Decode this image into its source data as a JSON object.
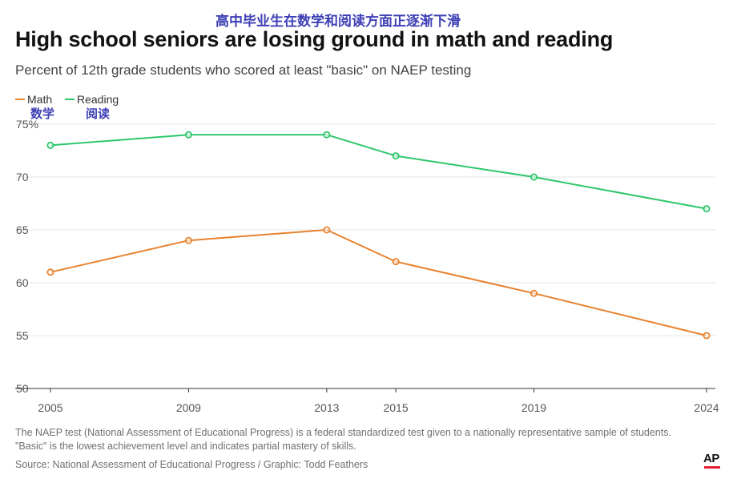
{
  "annotation_cn": {
    "title": "高中毕业生在数学和阅读方面正逐渐下滑",
    "math": "数学",
    "reading": "阅读"
  },
  "chart_data": {
    "type": "line",
    "title": "High school seniors are losing ground in math and reading",
    "subtitle": "Percent of 12th grade students who scored at least \"basic\" on NAEP testing",
    "x": [
      2005,
      2009,
      2013,
      2015,
      2019,
      2024
    ],
    "x_tick_labels": [
      "2005",
      "2009",
      "2013",
      "2015",
      "2019",
      "2024"
    ],
    "series": [
      {
        "name": "Math",
        "color": "#e8822e",
        "values": [
          61,
          64,
          65,
          62,
          59,
          55
        ]
      },
      {
        "name": "Reading",
        "color": "#2ec76a",
        "values": [
          73,
          74,
          74,
          72,
          70,
          67
        ]
      }
    ],
    "ylim": [
      50,
      75
    ],
    "y_ticks": [
      50,
      55,
      60,
      65,
      70,
      75
    ],
    "y_tick_labels": [
      "50",
      "55",
      "60",
      "65",
      "70",
      "75%"
    ],
    "xlabel": "",
    "ylabel": "",
    "grid": true,
    "legend_position": "top-left"
  },
  "footer": {
    "note": "The NAEP test (National Assessment of Educational Progress) is a federal standardized test given to a nationally representative sample of students. \"Basic\" is the lowest achievement level and indicates partial mastery of skills.",
    "source": "Source: National Assessment of Educational Progress / Graphic: Todd Feathers",
    "logo": "AP"
  },
  "colors": {
    "annotation": "#3d3fb5",
    "grid": "#e6e6e6",
    "axis": "#333333",
    "logo_bar": "#e0202c"
  }
}
